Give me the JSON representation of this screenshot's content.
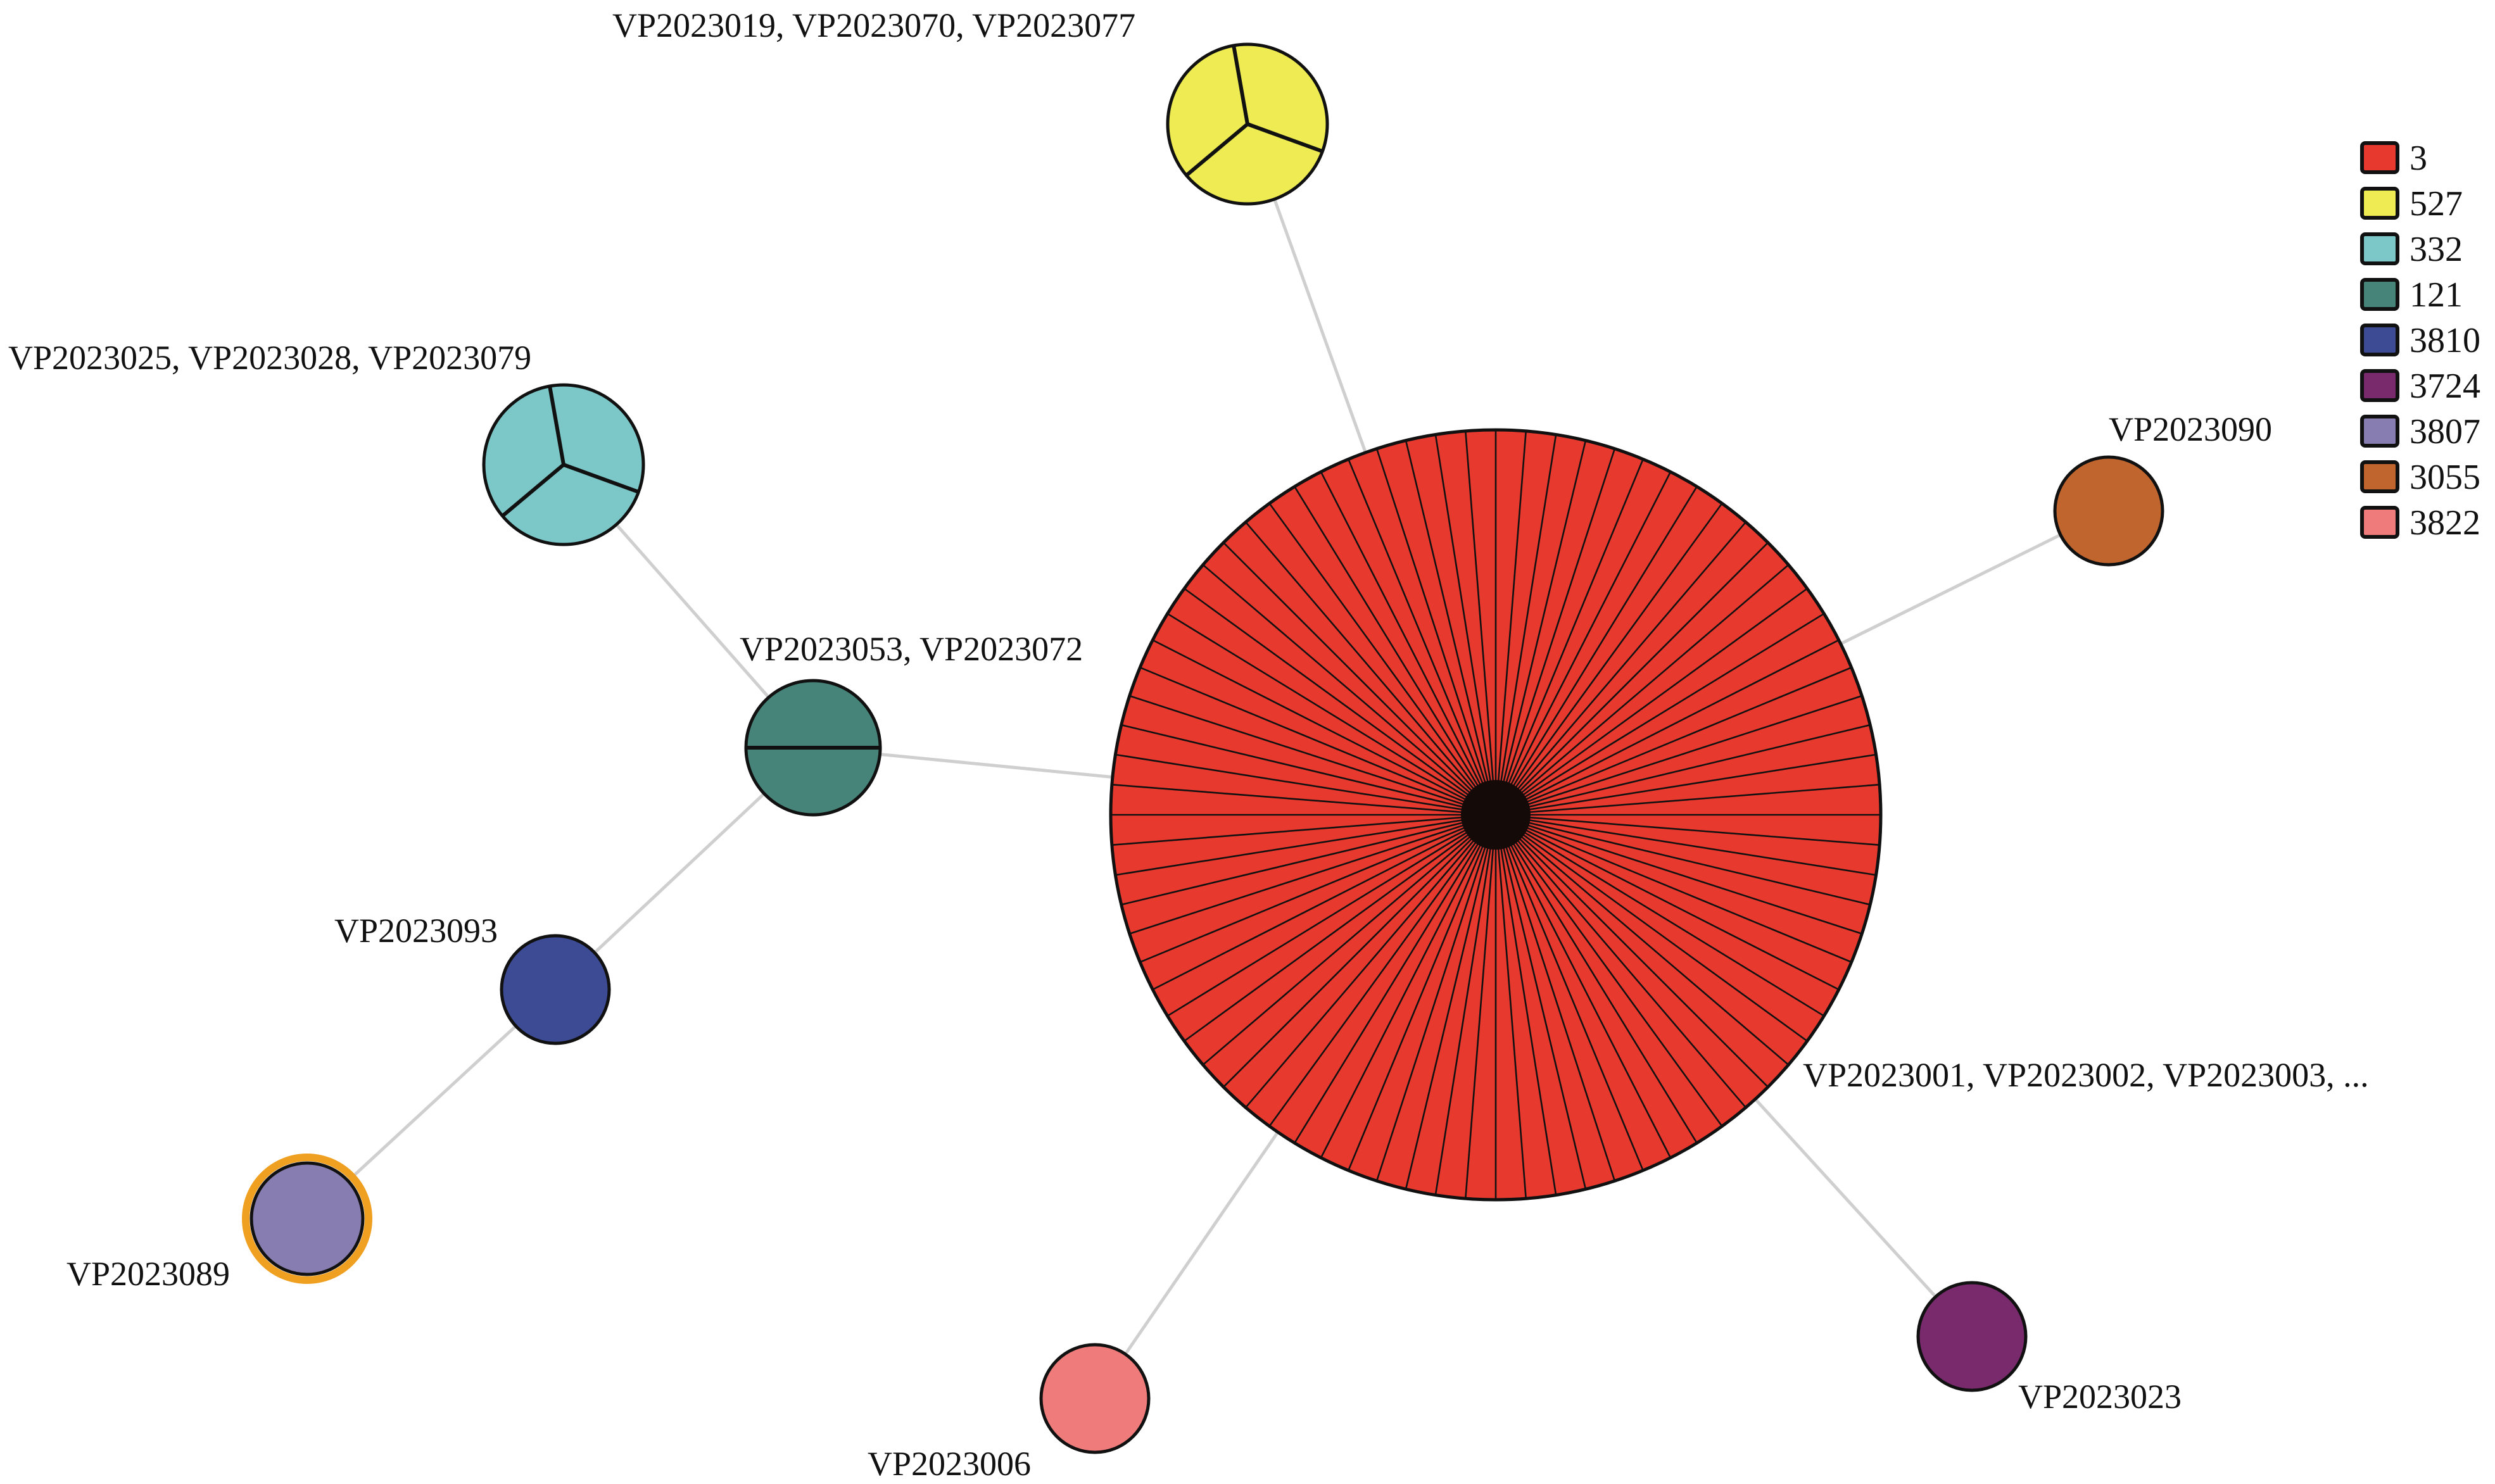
{
  "legend": [
    {
      "label": "3",
      "color": "#e8392f"
    },
    {
      "label": "527",
      "color": "#eeec52"
    },
    {
      "label": "332",
      "color": "#7cc7c7"
    },
    {
      "label": "121",
      "color": "#46847a"
    },
    {
      "label": "3810",
      "color": "#3d4a94"
    },
    {
      "label": "3724",
      "color": "#792a6c"
    },
    {
      "label": "3807",
      "color": "#877db0"
    },
    {
      "label": "3055",
      "color": "#c0652e"
    },
    {
      "label": "3822",
      "color": "#ef7b7b"
    }
  ],
  "nodes": [
    {
      "id": "st3",
      "type": "3",
      "count": 80,
      "label": "VP2023001, VP2023002, VP2023003, ..."
    },
    {
      "id": "st527",
      "type": "527",
      "count": 3,
      "label": "VP2023019, VP2023070, VP2023077"
    },
    {
      "id": "st332",
      "type": "332",
      "count": 3,
      "label": "VP2023025, VP2023028, VP2023079"
    },
    {
      "id": "st121",
      "type": "121",
      "count": 2,
      "label": "VP2023053, VP2023072"
    },
    {
      "id": "st3810",
      "type": "3810",
      "count": 1,
      "label": "VP2023093"
    },
    {
      "id": "st3807",
      "type": "3807",
      "count": 1,
      "label": "VP2023089",
      "highlight": "#f0a020"
    },
    {
      "id": "st3822",
      "type": "3822",
      "count": 1,
      "label": "VP2023006"
    },
    {
      "id": "st3724",
      "type": "3724",
      "count": 1,
      "label": "VP2023023"
    },
    {
      "id": "st3055",
      "type": "3055",
      "count": 1,
      "label": "VP2023090"
    }
  ],
  "edges": [
    [
      "st3",
      "st527"
    ],
    [
      "st3",
      "st3055"
    ],
    [
      "st3",
      "st121"
    ],
    [
      "st3",
      "st3822"
    ],
    [
      "st3",
      "st3724"
    ],
    [
      "st121",
      "st332"
    ],
    [
      "st121",
      "st3810"
    ],
    [
      "st3810",
      "st3807"
    ]
  ],
  "edge_color": "#cfcfcf"
}
